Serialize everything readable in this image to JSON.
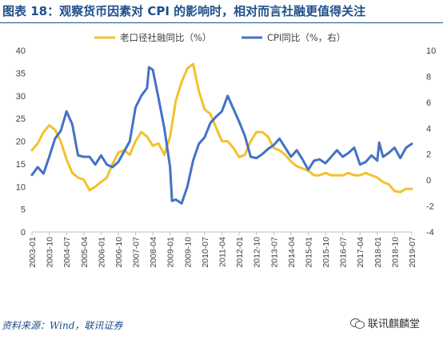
{
  "title": "图表 18：观察货币因素对 CPI 的影响时，相对而言社融更值得关注",
  "source": "资料来源：Wind，联讯证券",
  "watermark": "联讯麒麟堂",
  "icons": {
    "watermark": "wechat-icon"
  },
  "chart_data": {
    "type": "line",
    "left_axis": {
      "min": 0,
      "max": 40,
      "ticks": [
        0,
        5,
        10,
        15,
        20,
        25,
        30,
        35,
        40
      ]
    },
    "right_axis": {
      "min": -4,
      "max": 10,
      "ticks": [
        -4,
        -2,
        0,
        2,
        4,
        6,
        8,
        10
      ]
    },
    "x_tick_labels": [
      "2003-01",
      "2003-10",
      "2004-07",
      "2005-04",
      "2006-01",
      "2006-10",
      "2007-07",
      "2008-04",
      "2009-01",
      "2009-10",
      "2010-07",
      "2011-04",
      "2012-01",
      "2012-10",
      "2013-07",
      "2014-04",
      "2015-01",
      "2015-10",
      "2016-07",
      "2017-04",
      "2018-01",
      "2018-10",
      "2019-07"
    ],
    "legend_position": "top",
    "grid": false,
    "series": [
      {
        "name": "老口径社融同比（%）",
        "axis": "left",
        "color": "#f2c12e",
        "points": [
          [
            "2003-01",
            18
          ],
          [
            "2003-04",
            19.5
          ],
          [
            "2003-07",
            22
          ],
          [
            "2003-10",
            23.5
          ],
          [
            "2004-01",
            22.5
          ],
          [
            "2004-04",
            20
          ],
          [
            "2004-07",
            16
          ],
          [
            "2004-10",
            13
          ],
          [
            "2005-01",
            12
          ],
          [
            "2005-04",
            11.5
          ],
          [
            "2005-07",
            9.2
          ],
          [
            "2005-10",
            10
          ],
          [
            "2006-01",
            11
          ],
          [
            "2006-04",
            12
          ],
          [
            "2006-07",
            15
          ],
          [
            "2006-10",
            17.5
          ],
          [
            "2007-01",
            18
          ],
          [
            "2007-04",
            17
          ],
          [
            "2007-07",
            20
          ],
          [
            "2007-10",
            22
          ],
          [
            "2008-01",
            21
          ],
          [
            "2008-04",
            19
          ],
          [
            "2008-07",
            19.5
          ],
          [
            "2008-10",
            17
          ],
          [
            "2009-01",
            21
          ],
          [
            "2009-04",
            29
          ],
          [
            "2009-07",
            33
          ],
          [
            "2009-10",
            36
          ],
          [
            "2010-01",
            37
          ],
          [
            "2010-04",
            31
          ],
          [
            "2010-07",
            27
          ],
          [
            "2010-10",
            26
          ],
          [
            "2011-01",
            23
          ],
          [
            "2011-04",
            20
          ],
          [
            "2011-07",
            20
          ],
          [
            "2011-10",
            18.5
          ],
          [
            "2012-01",
            16.5
          ],
          [
            "2012-04",
            17
          ],
          [
            "2012-07",
            20
          ],
          [
            "2012-10",
            22
          ],
          [
            "2013-01",
            22
          ],
          [
            "2013-04",
            21
          ],
          [
            "2013-07",
            18.5
          ],
          [
            "2013-10",
            18
          ],
          [
            "2014-01",
            17
          ],
          [
            "2014-04",
            15.5
          ],
          [
            "2014-07",
            14.5
          ],
          [
            "2014-10",
            14
          ],
          [
            "2015-01",
            13.5
          ],
          [
            "2015-04",
            12.5
          ],
          [
            "2015-07",
            12.5
          ],
          [
            "2015-10",
            13
          ],
          [
            "2016-01",
            12.5
          ],
          [
            "2016-04",
            12.5
          ],
          [
            "2016-07",
            12.5
          ],
          [
            "2016-10",
            13
          ],
          [
            "2017-01",
            12.5
          ],
          [
            "2017-04",
            12.5
          ],
          [
            "2017-07",
            13
          ],
          [
            "2017-10",
            12.5
          ],
          [
            "2018-01",
            12
          ],
          [
            "2018-04",
            11
          ],
          [
            "2018-07",
            10.5
          ],
          [
            "2018-10",
            9
          ],
          [
            "2019-01",
            8.8
          ],
          [
            "2019-04",
            9.5
          ],
          [
            "2019-07",
            9.5
          ]
        ]
      },
      {
        "name": "CPI同比（%，右）",
        "axis": "right",
        "color": "#4472c4",
        "points": [
          [
            "2003-01",
            0.4
          ],
          [
            "2003-04",
            1
          ],
          [
            "2003-07",
            0.5
          ],
          [
            "2003-10",
            1.8
          ],
          [
            "2004-01",
            3.2
          ],
          [
            "2004-04",
            3.8
          ],
          [
            "2004-07",
            5.3
          ],
          [
            "2004-10",
            4.3
          ],
          [
            "2005-01",
            1.9
          ],
          [
            "2005-04",
            1.8
          ],
          [
            "2005-07",
            1.8
          ],
          [
            "2005-10",
            1.2
          ],
          [
            "2006-01",
            1.9
          ],
          [
            "2006-04",
            1.2
          ],
          [
            "2006-07",
            1
          ],
          [
            "2006-10",
            1.4
          ],
          [
            "2007-01",
            2.2
          ],
          [
            "2007-04",
            3
          ],
          [
            "2007-07",
            5.6
          ],
          [
            "2007-10",
            6.5
          ],
          [
            "2008-01",
            7.1
          ],
          [
            "2008-02",
            8.7
          ],
          [
            "2008-04",
            8.5
          ],
          [
            "2008-07",
            6.3
          ],
          [
            "2008-10",
            4
          ],
          [
            "2009-01",
            1
          ],
          [
            "2009-02",
            -1.6
          ],
          [
            "2009-04",
            -1.5
          ],
          [
            "2009-07",
            -1.8
          ],
          [
            "2009-10",
            -0.5
          ],
          [
            "2010-01",
            1.5
          ],
          [
            "2010-04",
            2.8
          ],
          [
            "2010-07",
            3.3
          ],
          [
            "2010-10",
            4.4
          ],
          [
            "2011-01",
            4.9
          ],
          [
            "2011-04",
            5.3
          ],
          [
            "2011-07",
            6.5
          ],
          [
            "2011-10",
            5.5
          ],
          [
            "2012-01",
            4.5
          ],
          [
            "2012-04",
            3.4
          ],
          [
            "2012-07",
            1.8
          ],
          [
            "2012-10",
            1.7
          ],
          [
            "2013-01",
            2
          ],
          [
            "2013-04",
            2.4
          ],
          [
            "2013-07",
            2.7
          ],
          [
            "2013-10",
            3.2
          ],
          [
            "2014-01",
            2.5
          ],
          [
            "2014-04",
            1.8
          ],
          [
            "2014-07",
            2.3
          ],
          [
            "2014-10",
            1.6
          ],
          [
            "2015-01",
            0.8
          ],
          [
            "2015-04",
            1.5
          ],
          [
            "2015-07",
            1.6
          ],
          [
            "2015-10",
            1.3
          ],
          [
            "2016-01",
            1.8
          ],
          [
            "2016-04",
            2.3
          ],
          [
            "2016-07",
            1.8
          ],
          [
            "2016-10",
            2.1
          ],
          [
            "2017-01",
            2.5
          ],
          [
            "2017-04",
            1.2
          ],
          [
            "2017-07",
            1.4
          ],
          [
            "2017-10",
            1.9
          ],
          [
            "2018-01",
            1.5
          ],
          [
            "2018-02",
            2.9
          ],
          [
            "2018-04",
            1.8
          ],
          [
            "2018-07",
            2.1
          ],
          [
            "2018-10",
            2.5
          ],
          [
            "2019-01",
            1.7
          ],
          [
            "2019-04",
            2.5
          ],
          [
            "2019-07",
            2.8
          ]
        ]
      }
    ]
  }
}
